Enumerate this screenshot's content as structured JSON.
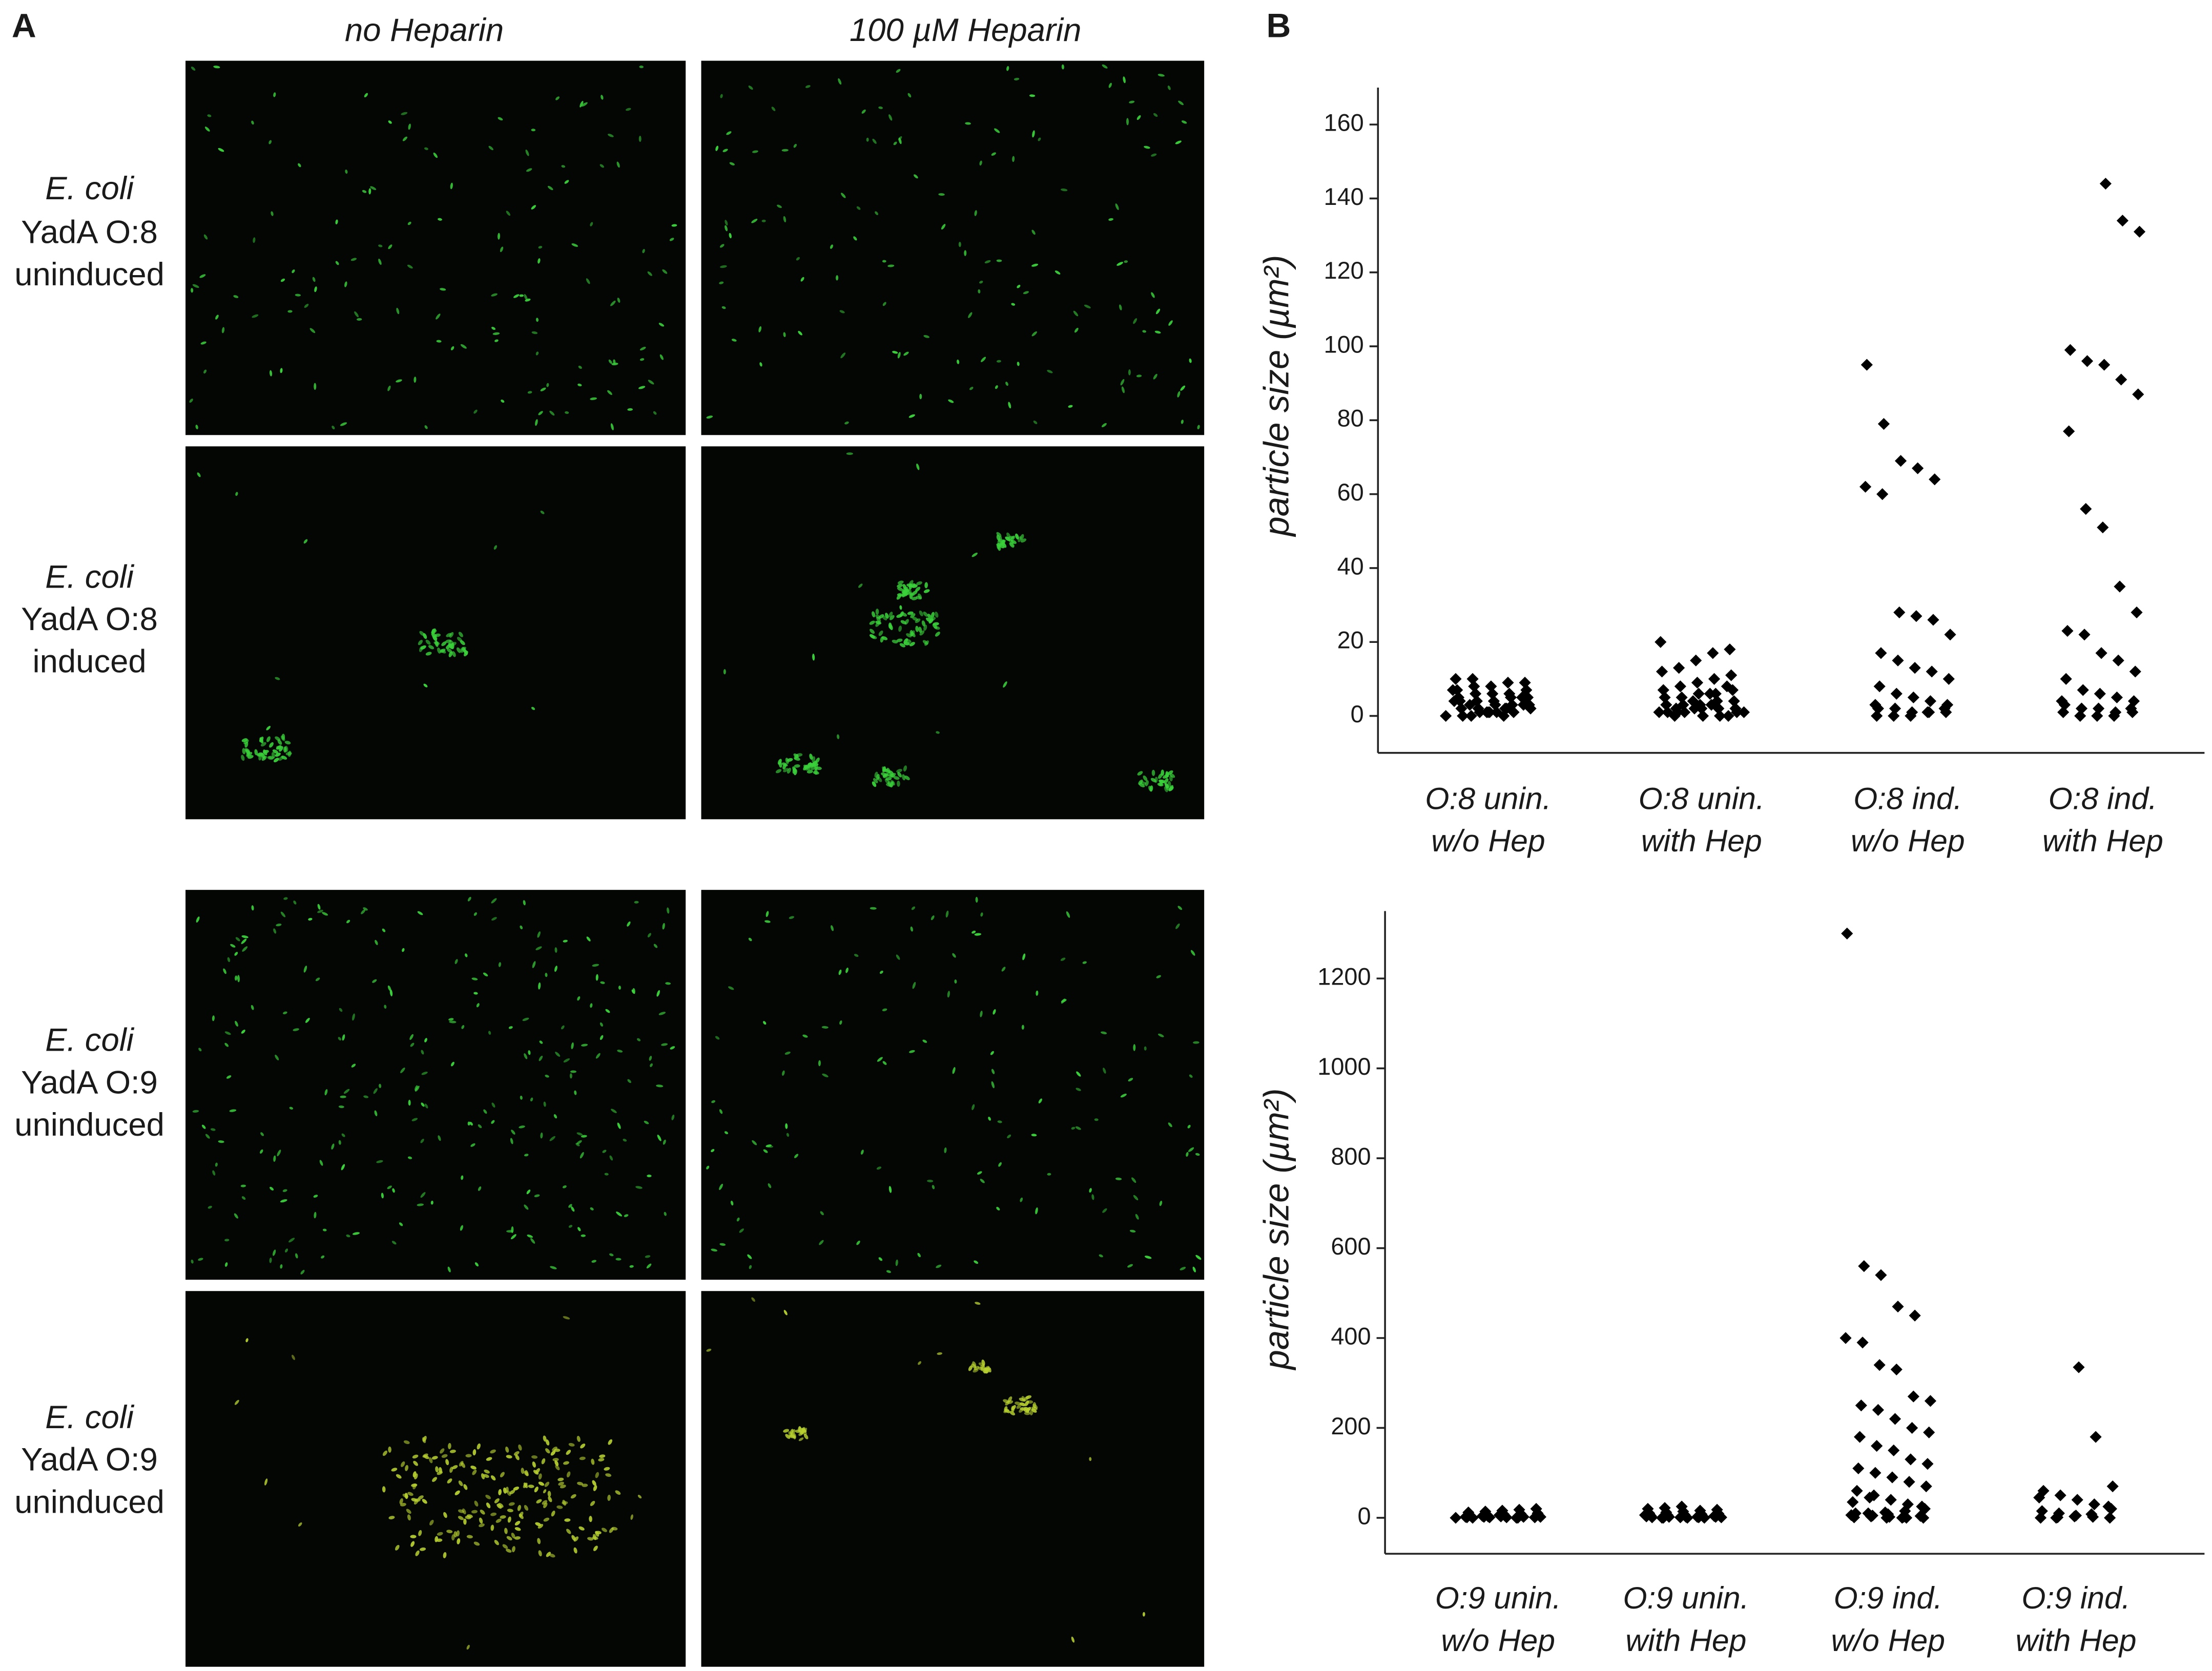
{
  "panel_a": {
    "label": "A",
    "columns": [
      "no Heparin",
      "100 µM Heparin"
    ],
    "rows": [
      [
        "E. coli",
        "YadA O:8",
        "uninduced"
      ],
      [
        "E. coli",
        "YadA O:8",
        "induced"
      ],
      [
        "E. coli",
        "YadA O:9",
        "uninduced"
      ],
      [
        "E. coli",
        "YadA O:9",
        "uninduced"
      ]
    ]
  },
  "panel_b_label": "B",
  "chart_data": [
    {
      "type": "strip",
      "ylabel": "particle size (µm²)",
      "color": "#000000",
      "categories": [
        [
          "O:8 unin.",
          "w/o Hep"
        ],
        [
          "O:8 unin.",
          "with Hep"
        ],
        [
          "O:8 ind.",
          "w/o Hep"
        ],
        [
          "O:8 ind.",
          "with Hep"
        ]
      ],
      "values": [
        [
          0,
          0,
          1,
          1,
          1,
          2,
          2,
          2,
          3,
          3,
          3,
          4,
          4,
          4,
          5,
          5,
          5,
          6,
          6,
          6,
          7,
          7,
          8,
          8,
          9,
          9,
          10,
          10,
          1,
          2,
          3,
          4,
          0,
          1,
          2,
          5,
          7,
          3,
          1,
          0
        ],
        [
          0,
          0,
          1,
          1,
          1,
          2,
          2,
          2,
          3,
          3,
          3,
          4,
          4,
          5,
          5,
          6,
          6,
          7,
          7,
          8,
          9,
          10,
          11,
          12,
          13,
          15,
          17,
          18,
          20,
          1,
          2,
          3,
          0,
          1,
          2,
          4,
          6,
          8,
          1,
          0
        ],
        [
          95,
          79,
          69,
          67,
          64,
          62,
          60,
          28,
          27,
          26,
          22,
          17,
          15,
          13,
          12,
          10,
          8,
          6,
          5,
          4,
          3,
          2,
          2,
          1,
          1,
          1,
          0,
          0,
          0,
          1,
          2,
          3
        ],
        [
          144,
          134,
          131,
          99,
          96,
          95,
          91,
          87,
          77,
          56,
          51,
          35,
          28,
          23,
          22,
          17,
          15,
          12,
          10,
          7,
          6,
          5,
          4,
          3,
          2,
          2,
          1,
          1,
          1,
          0,
          0,
          0,
          2,
          4
        ]
      ],
      "ylim": [
        -10,
        170
      ],
      "yticks": [
        0,
        20,
        40,
        60,
        80,
        100,
        120,
        140,
        160
      ]
    },
    {
      "type": "strip",
      "ylabel": "particle size (µm²)",
      "color": "#000000",
      "categories": [
        [
          "O:9 unin.",
          "w/o Hep"
        ],
        [
          "O:9 unin.",
          "with Hep"
        ],
        [
          "O:9 ind.",
          "w/o Hep"
        ],
        [
          "O:9 ind.",
          "with Hep"
        ]
      ],
      "values": [
        [
          0,
          0,
          1,
          1,
          2,
          2,
          3,
          3,
          4,
          5,
          5,
          6,
          7,
          8,
          9,
          10,
          12,
          14,
          16,
          18,
          20,
          1,
          2,
          3,
          0,
          1,
          2,
          4,
          6,
          0
        ],
        [
          0,
          0,
          1,
          1,
          2,
          2,
          3,
          4,
          5,
          6,
          7,
          8,
          9,
          10,
          12,
          14,
          16,
          18,
          20,
          22,
          25,
          1,
          2,
          3,
          0,
          1,
          2,
          4,
          6,
          0
        ],
        [
          1300,
          560,
          540,
          470,
          450,
          400,
          390,
          340,
          330,
          270,
          260,
          250,
          240,
          220,
          200,
          190,
          180,
          160,
          150,
          130,
          120,
          110,
          100,
          90,
          80,
          70,
          60,
          50,
          40,
          30,
          20,
          10,
          5,
          2,
          0,
          0,
          1,
          3,
          8,
          15,
          25,
          35,
          45,
          0,
          2,
          4,
          6,
          10,
          12,
          0
        ],
        [
          335,
          180,
          70,
          60,
          50,
          40,
          30,
          20,
          15,
          10,
          5,
          2,
          0,
          0,
          1,
          3,
          8,
          25,
          45,
          0
        ]
      ],
      "ylim": [
        -80,
        1350
      ],
      "yticks": [
        0,
        200,
        400,
        600,
        800,
        1000,
        1200
      ]
    }
  ]
}
